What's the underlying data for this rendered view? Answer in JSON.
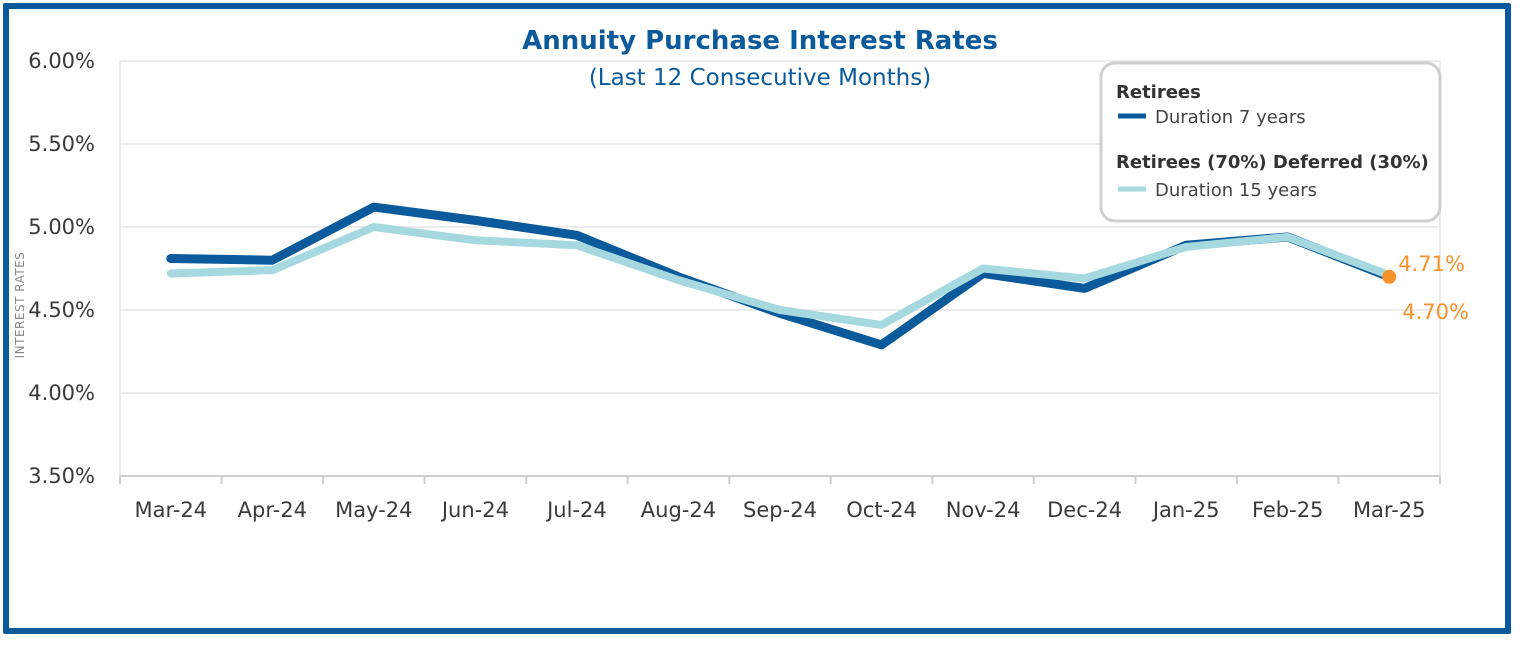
{
  "colors": {
    "frame": "#0a5a9c",
    "series_dark": "#0a5a9c",
    "series_light": "#a6d9df",
    "highlight": "#f7922b",
    "grid": "#e6e6e6"
  },
  "chart_data": {
    "type": "line",
    "title": "Annuity Purchase Interest Rates",
    "subtitle": "(Last 12 Consecutive Months)",
    "xlabel": "",
    "ylabel": "INTEREST RATES",
    "ylim": [
      3.5,
      6.0
    ],
    "yticks": [
      "6.00%",
      "5.50%",
      "5.00%",
      "4.50%",
      "4.00%",
      "3.50%"
    ],
    "ytick_values": [
      6.0,
      5.5,
      5.0,
      4.5,
      4.0,
      3.5
    ],
    "categories": [
      "Mar-24",
      "Apr-24",
      "May-24",
      "Jun-24",
      "Jul-24",
      "Aug-24",
      "Sep-24",
      "Oct-24",
      "Nov-24",
      "Dec-24",
      "Jan-25",
      "Feb-25",
      "Mar-25"
    ],
    "grid": true,
    "legend_position": "top-right",
    "series": [
      {
        "name": "Retirees",
        "label": "Duration 7 years",
        "color": "#0a5a9c",
        "values": [
          4.81,
          4.8,
          5.12,
          5.04,
          4.95,
          4.7,
          4.48,
          4.29,
          4.72,
          4.63,
          4.89,
          4.94,
          4.7
        ]
      },
      {
        "name": "Retirees (70%) Deferred (30%)",
        "label": "Duration 15 years",
        "color": "#a6d9df",
        "values": [
          4.72,
          4.74,
          5.0,
          4.92,
          4.89,
          4.68,
          4.5,
          4.41,
          4.75,
          4.69,
          4.88,
          4.94,
          4.71
        ]
      }
    ],
    "annotations": {
      "light_end_label": "4.71%",
      "dark_end_label": "4.70%"
    }
  }
}
